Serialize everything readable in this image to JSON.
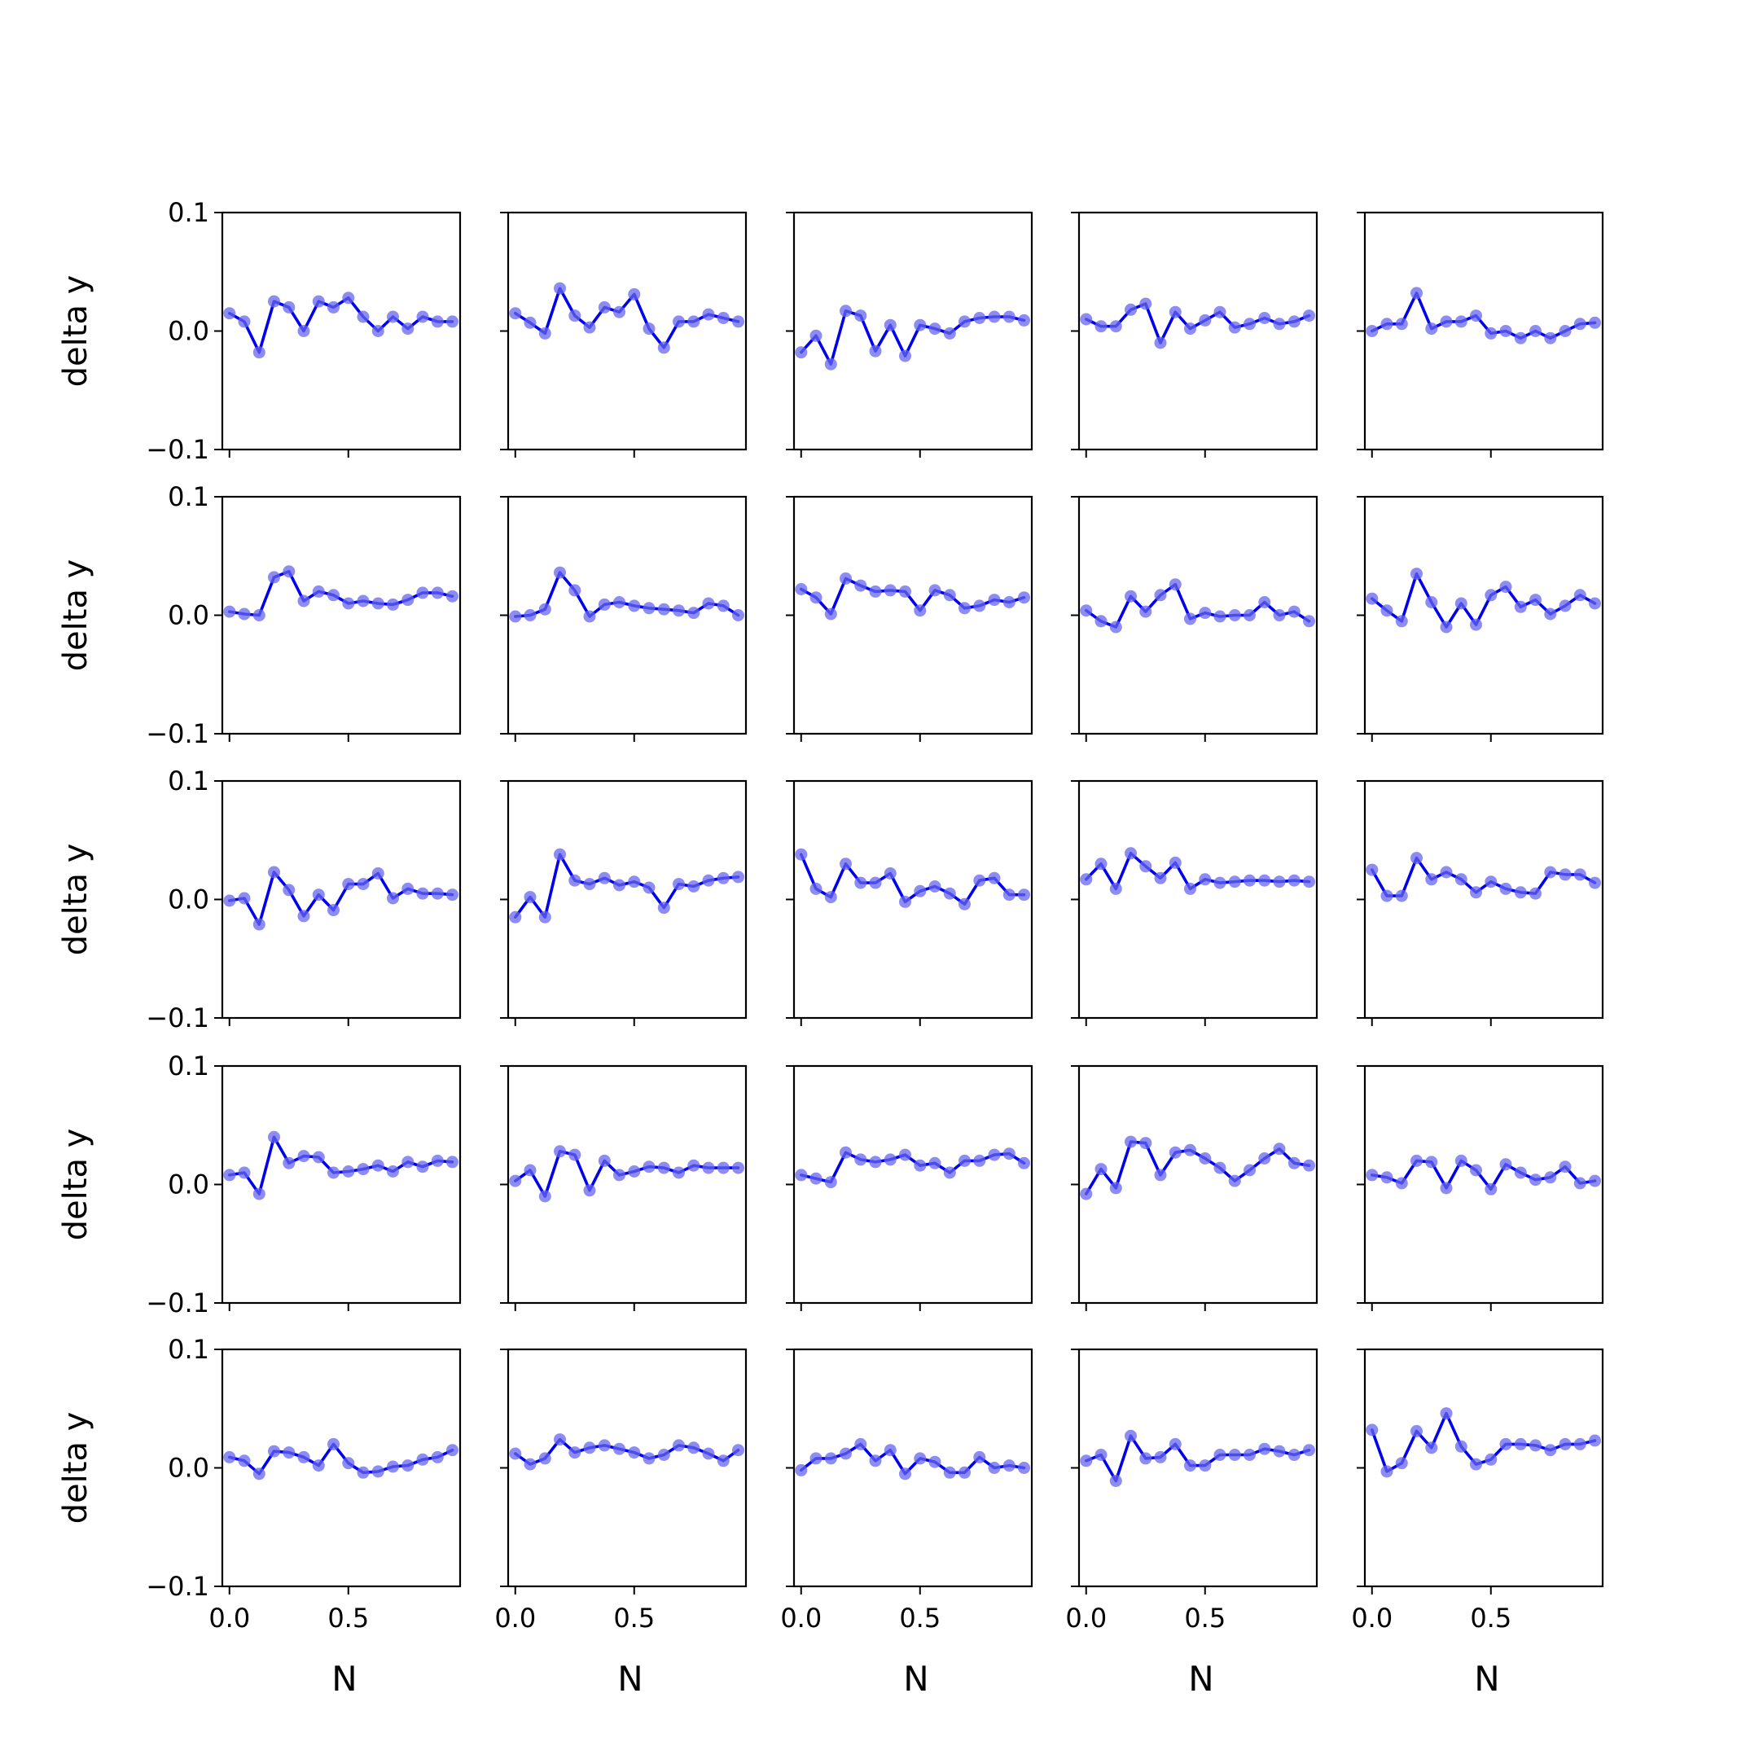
{
  "chart_data": {
    "type": "line",
    "layout": "5x5 grid of small multiples",
    "xlabel": "N",
    "ylabel": "delta y",
    "xlim": [
      -0.03,
      0.97
    ],
    "ylim": [
      -0.1,
      0.1
    ],
    "x_ticks": [
      0.0,
      0.5
    ],
    "x_tick_labels": [
      "0.0",
      "0.5"
    ],
    "y_ticks": [
      -0.1,
      0.0,
      0.1
    ],
    "y_tick_labels": [
      "−0.1",
      "0.0",
      "0.1"
    ],
    "grid": false,
    "colors": {
      "line": "#0000ee",
      "marker": "#6666ee"
    },
    "x": [
      0.0,
      0.0625,
      0.125,
      0.1875,
      0.25,
      0.3125,
      0.375,
      0.4375,
      0.5,
      0.5625,
      0.625,
      0.6875,
      0.75,
      0.8125,
      0.875,
      0.9375
    ],
    "panels": [
      [
        [
          0.015,
          0.008,
          -0.018,
          0.025,
          0.02,
          0.0,
          0.025,
          0.02,
          0.028,
          0.012,
          0.0,
          0.012,
          0.002,
          0.012,
          0.008,
          0.008
        ],
        [
          0.015,
          0.007,
          -0.002,
          0.036,
          0.013,
          0.003,
          0.02,
          0.016,
          0.031,
          0.002,
          -0.014,
          0.008,
          0.008,
          0.014,
          0.011,
          0.008
        ],
        [
          -0.018,
          -0.004,
          -0.028,
          0.017,
          0.013,
          -0.017,
          0.005,
          -0.021,
          0.005,
          0.002,
          -0.002,
          0.008,
          0.011,
          0.012,
          0.012,
          0.009
        ],
        [
          0.01,
          0.004,
          0.004,
          0.018,
          0.023,
          -0.01,
          0.016,
          0.002,
          0.009,
          0.016,
          0.003,
          0.006,
          0.011,
          0.006,
          0.008,
          0.013
        ],
        [
          0.0,
          0.006,
          0.006,
          0.032,
          0.002,
          0.008,
          0.008,
          0.013,
          -0.002,
          0.0,
          -0.006,
          0.0,
          -0.006,
          0.0,
          0.006,
          0.007
        ]
      ],
      [
        [
          0.003,
          0.001,
          0.0,
          0.032,
          0.037,
          0.012,
          0.02,
          0.017,
          0.01,
          0.012,
          0.01,
          0.009,
          0.013,
          0.019,
          0.019,
          0.016
        ],
        [
          -0.001,
          0.0,
          0.005,
          0.036,
          0.021,
          -0.001,
          0.009,
          0.011,
          0.008,
          0.006,
          0.005,
          0.004,
          0.002,
          0.01,
          0.008,
          0.0
        ],
        [
          0.022,
          0.015,
          0.001,
          0.031,
          0.025,
          0.02,
          0.021,
          0.02,
          0.004,
          0.021,
          0.017,
          0.006,
          0.008,
          0.013,
          0.011,
          0.015
        ],
        [
          0.004,
          -0.005,
          -0.01,
          0.016,
          0.003,
          0.017,
          0.026,
          -0.003,
          0.002,
          -0.001,
          0.0,
          0.0,
          0.011,
          0.0,
          0.003,
          -0.005
        ],
        [
          0.014,
          0.004,
          -0.005,
          0.035,
          0.011,
          -0.01,
          0.01,
          -0.008,
          0.017,
          0.024,
          0.007,
          0.013,
          0.001,
          0.008,
          0.017,
          0.01
        ]
      ],
      [
        [
          -0.001,
          0.001,
          -0.021,
          0.023,
          0.008,
          -0.014,
          0.004,
          -0.009,
          0.013,
          0.013,
          0.022,
          0.001,
          0.009,
          0.005,
          0.005,
          0.004
        ],
        [
          -0.015,
          0.002,
          -0.015,
          0.038,
          0.016,
          0.013,
          0.018,
          0.012,
          0.015,
          0.01,
          -0.007,
          0.013,
          0.011,
          0.016,
          0.018,
          0.019
        ],
        [
          0.038,
          0.009,
          0.002,
          0.03,
          0.014,
          0.014,
          0.022,
          -0.002,
          0.007,
          0.011,
          0.005,
          -0.004,
          0.016,
          0.018,
          0.004,
          0.004
        ],
        [
          0.017,
          0.03,
          0.009,
          0.039,
          0.028,
          0.018,
          0.031,
          0.009,
          0.017,
          0.014,
          0.015,
          0.016,
          0.016,
          0.015,
          0.016,
          0.015
        ],
        [
          0.025,
          0.003,
          0.003,
          0.035,
          0.017,
          0.023,
          0.017,
          0.006,
          0.015,
          0.009,
          0.006,
          0.005,
          0.023,
          0.021,
          0.021,
          0.014
        ]
      ],
      [
        [
          0.008,
          0.01,
          -0.008,
          0.04,
          0.018,
          0.024,
          0.023,
          0.01,
          0.011,
          0.013,
          0.016,
          0.011,
          0.019,
          0.015,
          0.02,
          0.019
        ],
        [
          0.003,
          0.012,
          -0.01,
          0.028,
          0.025,
          -0.005,
          0.02,
          0.008,
          0.011,
          0.015,
          0.014,
          0.01,
          0.016,
          0.014,
          0.014,
          0.014
        ],
        [
          0.008,
          0.005,
          0.002,
          0.027,
          0.021,
          0.019,
          0.021,
          0.025,
          0.016,
          0.018,
          0.01,
          0.02,
          0.02,
          0.025,
          0.026,
          0.018
        ],
        [
          -0.008,
          0.013,
          -0.003,
          0.036,
          0.035,
          0.008,
          0.027,
          0.029,
          0.022,
          0.014,
          0.003,
          0.012,
          0.022,
          0.03,
          0.018,
          0.016
        ],
        [
          0.008,
          0.006,
          0.001,
          0.02,
          0.019,
          -0.003,
          0.02,
          0.012,
          -0.004,
          0.017,
          0.01,
          0.004,
          0.006,
          0.015,
          0.001,
          0.003
        ]
      ],
      [
        [
          0.009,
          0.006,
          -0.005,
          0.014,
          0.013,
          0.009,
          0.002,
          0.02,
          0.004,
          -0.004,
          -0.003,
          0.001,
          0.002,
          0.007,
          0.009,
          0.015
        ],
        [
          0.012,
          0.003,
          0.008,
          0.024,
          0.013,
          0.017,
          0.019,
          0.016,
          0.013,
          0.008,
          0.011,
          0.019,
          0.017,
          0.012,
          0.006,
          0.015
        ],
        [
          -0.002,
          0.008,
          0.008,
          0.012,
          0.02,
          0.006,
          0.015,
          -0.005,
          0.008,
          0.005,
          -0.004,
          -0.004,
          0.009,
          0.0,
          0.002,
          0.0
        ],
        [
          0.006,
          0.011,
          -0.011,
          0.027,
          0.008,
          0.009,
          0.02,
          0.002,
          0.002,
          0.011,
          0.011,
          0.011,
          0.016,
          0.014,
          0.011,
          0.015
        ],
        [
          0.032,
          -0.003,
          0.004,
          0.031,
          0.017,
          0.046,
          0.018,
          0.003,
          0.007,
          0.02,
          0.02,
          0.019,
          0.015,
          0.02,
          0.02,
          0.023
        ]
      ]
    ]
  }
}
